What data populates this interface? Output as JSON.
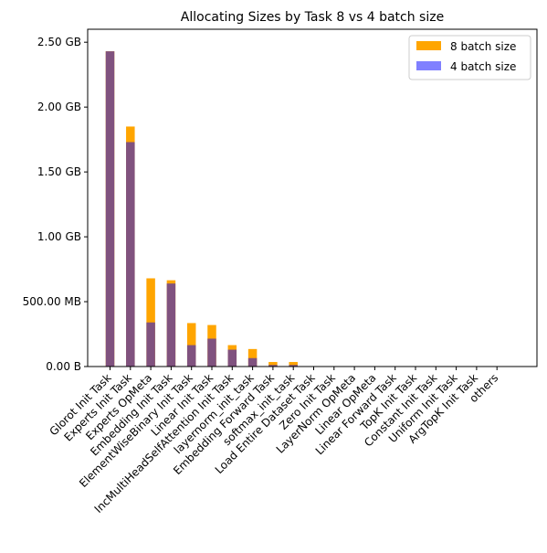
{
  "chart_data": {
    "type": "bar",
    "title": "Allocating Sizes by Task 8 vs 4 batch size",
    "xlabel": "",
    "ylabel": "",
    "ylim": [
      0,
      2.6
    ],
    "y_unit_note": "values in GB",
    "yticks": [
      {
        "value": 0,
        "label": "0.00 B"
      },
      {
        "value": 0.5,
        "label": "500.00 MB"
      },
      {
        "value": 1.0,
        "label": "1.00 GB"
      },
      {
        "value": 1.5,
        "label": "1.50 GB"
      },
      {
        "value": 2.0,
        "label": "2.00 GB"
      },
      {
        "value": 2.5,
        "label": "2.50 GB"
      }
    ],
    "categories": [
      "Glorot Init Task",
      "Experts Init Task",
      "Experts OpMeta",
      "Embedding Init Task",
      "ElementWiseBinary Init Task",
      "Linear Init Task",
      "IncMultiHeadSelfAttention Init Task",
      "layernorm_init_task",
      "Embedding Forward Task",
      "softmax_init_task",
      "Load Entire Dataset Task",
      "Zero Init Task",
      "LayerNorm OpMeta",
      "Linear OpMeta",
      "Linear Forward Task",
      "TopK Init Task",
      "Constant Init Task",
      "Uniform Init Task",
      "ArgTopK Init Task",
      "others"
    ],
    "series": [
      {
        "name": "8 batch size",
        "color": "#ffa500",
        "values": [
          2.43,
          1.85,
          0.68,
          0.665,
          0.335,
          0.32,
          0.165,
          0.135,
          0.035,
          0.035,
          0,
          0,
          0,
          0,
          0,
          0,
          0,
          0,
          0,
          0
        ]
      },
      {
        "name": "4 batch size",
        "color": "#8080ff",
        "values": [
          2.43,
          1.73,
          0.34,
          0.64,
          0.165,
          0.215,
          0.13,
          0.065,
          0.012,
          0.012,
          0,
          0,
          0,
          0,
          0,
          0,
          0,
          0,
          0,
          0
        ]
      }
    ],
    "overlap_color": "#80527f",
    "legend_position": "top-right"
  }
}
